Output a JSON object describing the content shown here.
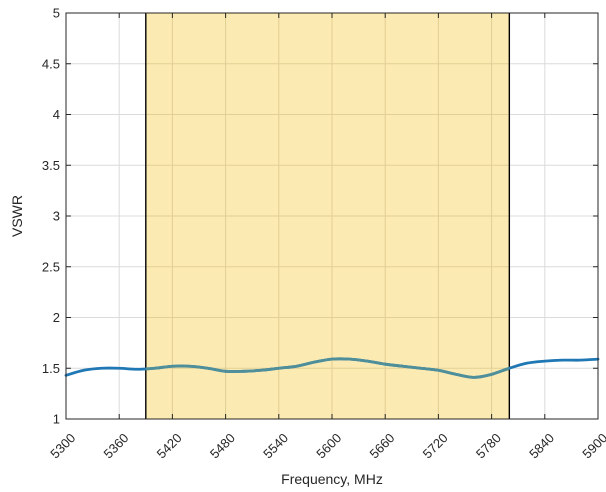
{
  "chart_data": {
    "type": "line",
    "title": "",
    "xlabel": "Frequency, MHz",
    "ylabel": "VSWR",
    "xlim": [
      5300,
      5900
    ],
    "ylim": [
      1,
      5
    ],
    "xticks": [
      5300,
      5360,
      5420,
      5480,
      5540,
      5600,
      5660,
      5720,
      5780,
      5840,
      5900
    ],
    "yticks": [
      1,
      1.5,
      2,
      2.5,
      3,
      3.5,
      4,
      4.5,
      5
    ],
    "ytick_labels": [
      "1",
      "1.5",
      "2",
      "2.5",
      "3",
      "3.5",
      "4",
      "4.5",
      "5"
    ],
    "grid": true,
    "highlight_band": {
      "x_start": 5390,
      "x_end": 5800,
      "fill_color": "#fbe6a6",
      "edge_color": "#000000"
    },
    "series": [
      {
        "color": "#1f77b4",
        "x": [
          5300,
          5320,
          5340,
          5360,
          5380,
          5400,
          5420,
          5440,
          5460,
          5480,
          5500,
          5520,
          5540,
          5560,
          5580,
          5600,
          5620,
          5640,
          5660,
          5680,
          5700,
          5720,
          5740,
          5760,
          5780,
          5800,
          5820,
          5840,
          5860,
          5880,
          5900
        ],
        "y": [
          1.43,
          1.48,
          1.5,
          1.5,
          1.49,
          1.5,
          1.52,
          1.52,
          1.5,
          1.47,
          1.47,
          1.48,
          1.5,
          1.52,
          1.56,
          1.59,
          1.59,
          1.57,
          1.54,
          1.52,
          1.5,
          1.48,
          1.44,
          1.41,
          1.44,
          1.5,
          1.55,
          1.57,
          1.58,
          1.58,
          1.59
        ]
      }
    ]
  }
}
